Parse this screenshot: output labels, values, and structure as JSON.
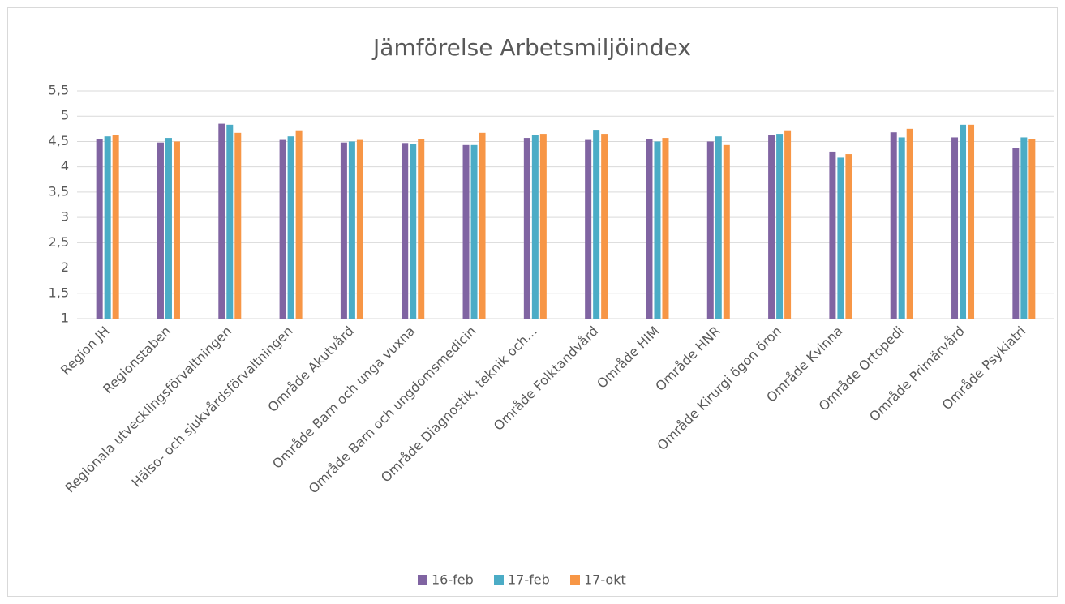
{
  "chart_data": {
    "type": "bar",
    "title": "Jämförelse Arbetsmiljöindex",
    "categories": [
      "Region JH",
      "Regionstaben",
      "Regionala utvecklingsförvaltningen",
      "Hälso- och sjukvårdsförvaltningen",
      "Område Akutvård",
      "Område Barn och unga vuxna",
      "Område Barn och ungdomsmedicin",
      "Område Diagnostik, teknik och…",
      "Område Folktandvård",
      "Område HIM",
      "Område HNR",
      "Område Kirurgi ögon öron",
      "Område Kvinna",
      "Område Ortopedi",
      "Område Primärvård",
      "Område Psykiatri"
    ],
    "series": [
      {
        "name": "16-feb",
        "color": "#8064a2",
        "values": [
          4.55,
          4.48,
          4.85,
          4.53,
          4.48,
          4.47,
          4.43,
          4.57,
          4.53,
          4.55,
          4.5,
          4.62,
          4.3,
          4.68,
          4.58,
          4.37
        ]
      },
      {
        "name": "17-feb",
        "color": "#4bacc6",
        "values": [
          4.6,
          4.57,
          4.83,
          4.6,
          4.5,
          4.45,
          4.43,
          4.62,
          4.73,
          4.5,
          4.6,
          4.65,
          4.18,
          4.58,
          4.83,
          4.58
        ]
      },
      {
        "name": "17-okt",
        "color": "#f79646",
        "values": [
          4.62,
          4.5,
          4.67,
          4.72,
          4.53,
          4.55,
          4.67,
          4.65,
          4.65,
          4.57,
          4.43,
          4.72,
          4.25,
          4.75,
          4.83,
          4.55
        ]
      }
    ],
    "ylim": [
      1,
      5.5
    ],
    "yticks": [
      1,
      {
        "value": 1.5,
        "label": "1,5"
      },
      2,
      {
        "value": 2.5,
        "label": "2,5"
      },
      3,
      {
        "value": 3.5,
        "label": "3,5"
      },
      4,
      {
        "value": 4.5,
        "label": "4,5"
      },
      5,
      {
        "value": 5.5,
        "label": "5,5"
      }
    ],
    "grid": true,
    "legend": "bottom"
  }
}
